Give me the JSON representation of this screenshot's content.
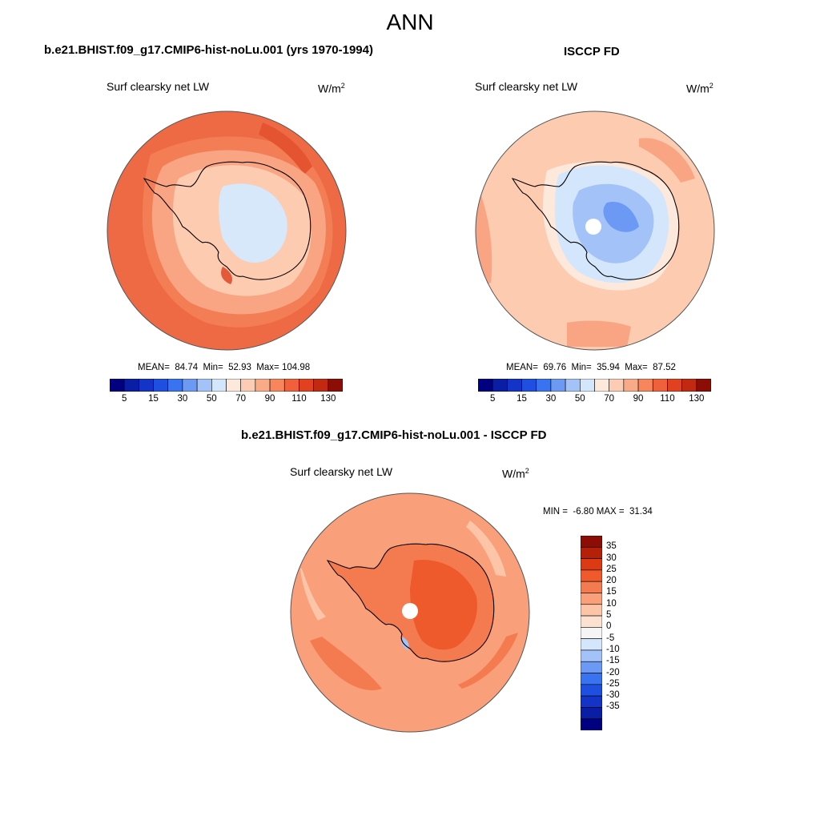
{
  "title": "ANN",
  "colors": {
    "land_outline": "#000000",
    "pole_hole": "#ffffff",
    "abs_scale": [
      "#000080",
      "#0a1ea5",
      "#1434c8",
      "#1f4fe0",
      "#3a73f0",
      "#6b99f4",
      "#a3c2f7",
      "#d3e6fb",
      "#fde8dc",
      "#fccdb4",
      "#f9aa86",
      "#f7865d",
      "#f0603a",
      "#e2411f",
      "#c12a10",
      "#8b0d05"
    ],
    "diff_scale": [
      "#000080",
      "#0a1ea5",
      "#1434c8",
      "#1f4fe0",
      "#3a73f0",
      "#6b99f4",
      "#a3c2f7",
      "#d3e6fb",
      "#f5f5f5",
      "#fde1d0",
      "#fcc5a8",
      "#f9a07a",
      "#f47a4f",
      "#ee5a2b",
      "#db3a12",
      "#b52008",
      "#8b0d05"
    ]
  },
  "panels": {
    "model": {
      "title": "b.e21.BHIST.f09_g17.CMIP6-hist-noLu.001 (yrs 1970-1994)",
      "variable": "Surf clearsky net LW",
      "units": "W/m",
      "units_exp": "2",
      "stats": "MEAN=  84.74  Min=  52.93  Max= 104.98",
      "colorbar_labels": [
        "5",
        "15",
        "30",
        "50",
        "70",
        "90",
        "110",
        "130"
      ]
    },
    "obs": {
      "title": "ISCCP FD",
      "variable": "Surf clearsky net LW",
      "units": "W/m",
      "units_exp": "2",
      "stats": "MEAN=  69.76  Min=  35.94  Max=  87.52",
      "colorbar_labels": [
        "5",
        "15",
        "30",
        "50",
        "70",
        "90",
        "110",
        "130"
      ]
    },
    "diff": {
      "title": "b.e21.BHIST.f09_g17.CMIP6-hist-noLu.001 - ISCCP FD",
      "variable": "Surf clearsky net LW",
      "units": "W/m",
      "units_exp": "2",
      "stats": "MIN =  -6.80 MAX =  31.34",
      "colorbar_labels": [
        "35",
        "30",
        "25",
        "20",
        "15",
        "10",
        "5",
        "0",
        "-5",
        "-10",
        "-15",
        "-20",
        "-25",
        "-30",
        "-35"
      ]
    }
  }
}
